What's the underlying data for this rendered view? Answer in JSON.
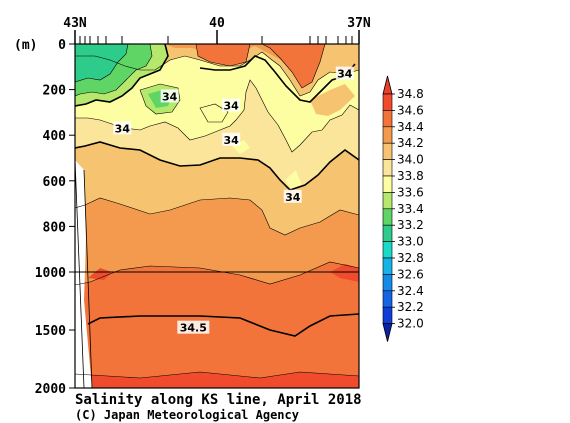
{
  "chart_data": {
    "type": "contour",
    "title": "Salinity along KS line, April 2018",
    "credit": "(C) Japan Meteorological Agency",
    "y_unit": "(m)",
    "x_ticks": [
      "43N",
      "40",
      "37N"
    ],
    "x_range_lat": [
      43,
      37
    ],
    "y_ticks_upper": [
      0,
      200,
      400,
      600,
      800,
      1000
    ],
    "y_ticks_lower": [
      1500,
      2000
    ],
    "y_break_depth": 1000,
    "colorbar": {
      "labels": [
        "34.8",
        "34.6",
        "34.4",
        "34.2",
        "34.0",
        "33.8",
        "33.6",
        "33.4",
        "33.2",
        "33.0",
        "32.8",
        "32.6",
        "32.4",
        "32.2",
        "32.0"
      ],
      "colors": [
        "#f04b2d",
        "#f2743b",
        "#f39a4f",
        "#f6c470",
        "#fae59a",
        "#fdfda2",
        "#b5e86c",
        "#5ed565",
        "#2ecc8a",
        "#1ad9c8",
        "#15b3e8",
        "#148be8",
        "#1465e6",
        "#0f3fd6"
      ],
      "arrow_top_color": "#e8402a",
      "arrow_bottom_color": "#0a22a8"
    },
    "contour_labels": [
      {
        "text": "34",
        "lat": 41.0,
        "depth": 230
      },
      {
        "text": "34",
        "lat": 39.7,
        "depth": 270
      },
      {
        "text": "34",
        "lat": 39.7,
        "depth": 420
      },
      {
        "text": "34",
        "lat": 42.0,
        "depth": 370
      },
      {
        "text": "34",
        "lat": 37.3,
        "depth": 130
      },
      {
        "text": "34",
        "lat": 38.4,
        "depth": 670
      },
      {
        "text": "34.5",
        "lat": 40.5,
        "depth": 1480
      }
    ],
    "legend_title": ""
  }
}
